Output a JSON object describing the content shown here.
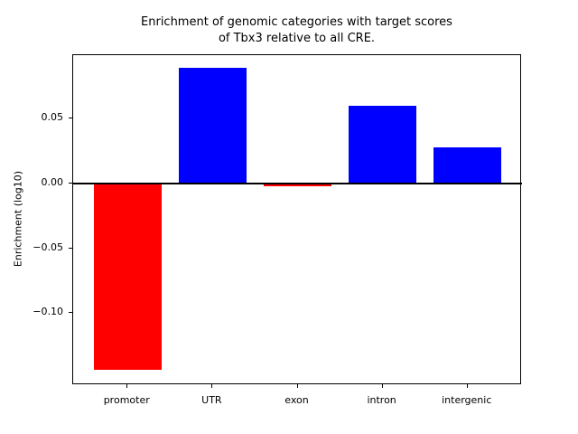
{
  "figure": {
    "background": "#ffffff"
  },
  "chart_data": {
    "type": "bar",
    "title": "Enrichment of genomic categories with target scores\nof Tbx3 relative to all CRE.",
    "title_lines": [
      "Enrichment of genomic categories with target scores",
      "of Tbx3 relative to all CRE."
    ],
    "xlabel": "",
    "ylabel": "Enrichment (log10)",
    "categories": [
      "promoter",
      "UTR",
      "exon",
      "intron",
      "intergenic"
    ],
    "values": [
      -0.144,
      0.089,
      -0.002,
      0.06,
      0.028
    ],
    "bar_colors": [
      "#ff0000",
      "#0000ff",
      "#ff0000",
      "#0000ff",
      "#0000ff"
    ],
    "positive_color": "#0000ff",
    "negative_color": "#ff0000",
    "bar_width": 0.8,
    "xlim": [
      -0.64,
      4.64
    ],
    "ylim": [
      -0.1555,
      0.0988
    ],
    "yticks": [
      0.05,
      0.0,
      -0.05,
      -0.1
    ],
    "ytick_labels": [
      "0.05",
      "0.00",
      "−0.05",
      "−0.10"
    ],
    "grid": false,
    "legend": null,
    "zero_line": true,
    "frame_color": "#000000",
    "text_color": "#000000"
  }
}
